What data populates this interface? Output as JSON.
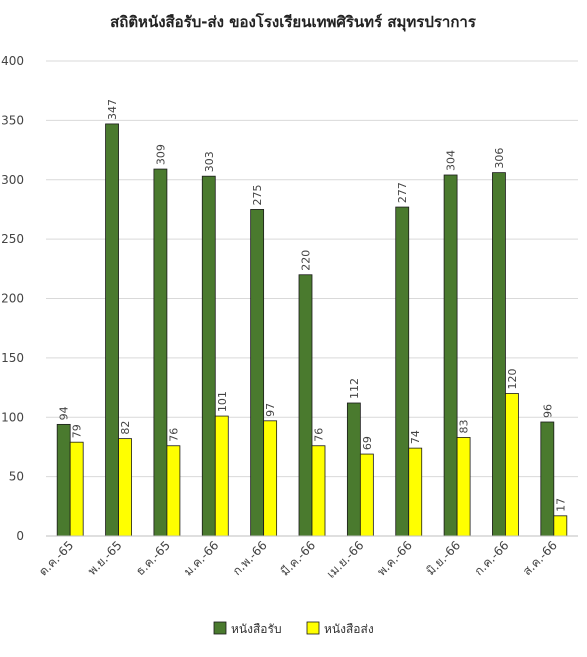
{
  "chart_data": {
    "type": "bar",
    "title": "สถิติหนังสือรับ-ส่ง ของโรงเรียนเทพศิรินทร์ สมุทรปราการ",
    "categories": [
      "ต.ค.-65",
      "พ.ย.-65",
      "ธ.ค.-65",
      "ม.ค.-66",
      "ก.พ.-66",
      "มี.ค.-66",
      "เม.ย.-66",
      "พ.ค.-66",
      "มิ.ย.-66",
      "ก.ค.-66",
      "ส.ค.-66"
    ],
    "series": [
      {
        "name": "หนังสือรับ",
        "color": "#4a7a2e",
        "values": [
          94,
          347,
          309,
          303,
          275,
          220,
          112,
          277,
          304,
          306,
          96
        ]
      },
      {
        "name": "หนังสือส่ง",
        "color": "#ffff00",
        "values": [
          79,
          82,
          76,
          101,
          97,
          76,
          69,
          74,
          83,
          120,
          17
        ]
      }
    ],
    "ylim": [
      0,
      400
    ],
    "yticks": [
      0,
      50,
      100,
      150,
      200,
      250,
      300,
      350,
      400
    ],
    "grid": true,
    "legend": "bottom"
  }
}
